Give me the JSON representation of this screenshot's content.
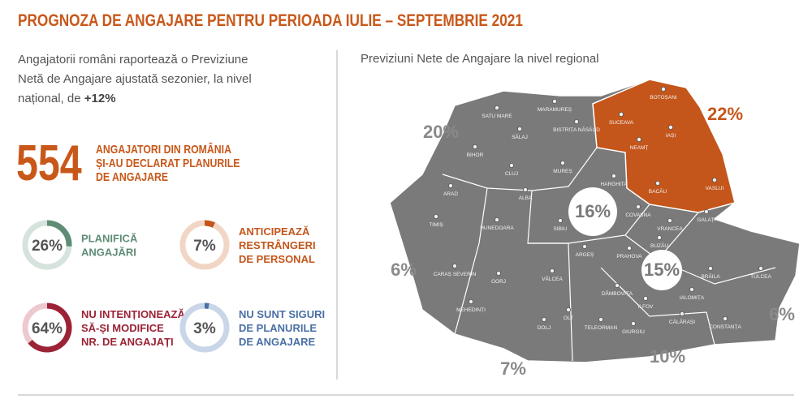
{
  "header": {
    "title": "PROGNOZA DE ANGAJARE PENTRU PERIOADA IULIE – SEPTEMBRIE 2021"
  },
  "intro": {
    "text": "Angajatorii români raportează o Previziune Netă de Angajare ajustată sezonier, la nivel național, de",
    "highlight": "+12%"
  },
  "stat": {
    "number": "554",
    "lines": [
      "ANGAJATORI DIN ROMÂNIA",
      "ȘI-AU DECLARAT PLANURILE",
      "DE ANGAJARE"
    ]
  },
  "donuts": [
    {
      "value": 26,
      "value_label": "26%",
      "lines": [
        "PLANIFICĂ",
        "ANGAJĂRI"
      ],
      "color": "#5e8c74",
      "track": "#d6e3dc"
    },
    {
      "value": 7,
      "value_label": "7%",
      "lines": [
        "ANTICIPEAZĂ",
        "RESTRÂNGERI",
        "DE PERSONAL"
      ],
      "color": "#c4561b",
      "track": "#f2d6c5"
    },
    {
      "value": 64,
      "value_label": "64%",
      "lines": [
        "NU INTENȚIONEAZĂ",
        "SĂ-ȘI MODIFICE",
        "NR. DE ANGAJAȚI"
      ],
      "color": "#9b2335",
      "track": "#ecc9cf"
    },
    {
      "value": 3,
      "value_label": "3%",
      "lines": [
        "NU SUNT SIGURI",
        "DE PLANURILE",
        "DE ANGAJARE"
      ],
      "color": "#4a6fa5",
      "track": "#c9d6e8"
    }
  ],
  "map": {
    "title": "Previziuni Nete de Angajare la nivel regional",
    "regions": [
      {
        "value": 20,
        "value_label": "20%"
      },
      {
        "value": 22,
        "value_label": "22%"
      },
      {
        "value": 16,
        "value_label": "16%"
      },
      {
        "value": 15,
        "value_label": "15%"
      },
      {
        "value": 6,
        "value_label": "6%"
      },
      {
        "value": 7,
        "value_label": "7%"
      },
      {
        "value": 10,
        "value_label": "10%"
      },
      {
        "value": 6,
        "value_label": "6%"
      }
    ],
    "counties": [
      "SATU MARE",
      "MARAMUREȘ",
      "BISTRIȚA NĂSĂUD",
      "BOTOȘANI",
      "SUCEAVA",
      "IAȘI",
      "NEAMȚ",
      "BACĂU",
      "VASLUI",
      "SĂLAJ",
      "BIHOR",
      "CLUJ",
      "MUREȘ",
      "HARGHITA",
      "ARAD",
      "ALBA",
      "COVASNA",
      "TIMIȘ",
      "HUNEDOARA",
      "SIBIU",
      "VRANCEA",
      "GALAȚI",
      "CARAȘ SEVERIN",
      "ARGEȘ",
      "PRAHOVA",
      "BUZĂU",
      "BRĂILA",
      "TULCEA",
      "GORJ",
      "VÂLCEA",
      "MEHEDINȚI",
      "DÂMBOVIȚA",
      "IALOMIȚA",
      "ILFOV",
      "DOLJ",
      "OLT",
      "TELEORMAN",
      "GIURGIU",
      "CĂLĂRAȘI",
      "CONSTANȚA"
    ]
  }
}
